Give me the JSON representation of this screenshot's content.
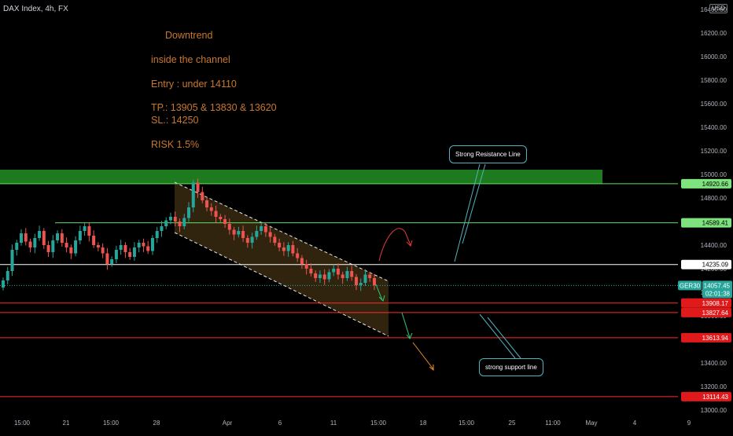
{
  "header": {
    "symbol": "DAX Index, 4h, FX",
    "currency": "USD"
  },
  "notes": {
    "line1": "Downtrend",
    "line2": "inside the channel",
    "line3": "Entry : under 14110",
    "line4": "TP.: 13905 & 13830 & 13620",
    "line5": "SL.: 14250",
    "line6": "RISK 1.5%"
  },
  "callouts": {
    "resistance": "Strong Resistance Line",
    "support": "strong support line"
  },
  "colors": {
    "background": "#000000",
    "up_candle": "#26a69a",
    "down_candle": "#ef5350",
    "resistance_zone": "#1e7a1e",
    "support_lines": "#ff2a2a",
    "channel_fill": "#3a2a10",
    "note_text": "#c8782e",
    "callout_border": "#4fb3bf"
  },
  "chart_data": {
    "type": "candlestick",
    "symbol": "DAX Index",
    "timeframe": "4h",
    "y_axis": {
      "ticks": [
        13000,
        13200,
        13400,
        13600,
        13800,
        14000,
        14200,
        14400,
        14600,
        14800,
        15000,
        15200,
        15400,
        15600,
        15800,
        16000,
        16200,
        16400
      ],
      "tick_labels": [
        "13000.00",
        "13200.00",
        "13400.00",
        "13600.00",
        "13800.00",
        "14000.00",
        "14200.00",
        "14400.00",
        "14600.00",
        "14800.00",
        "15000.00",
        "15200.00",
        "15400.00",
        "15600.00",
        "15800.00",
        "16000.00",
        "16200.00",
        "16400.00"
      ],
      "range": [
        12980,
        16480
      ]
    },
    "x_axis": {
      "tick_labels": [
        "15:00",
        "21",
        "15:00",
        "28",
        "Apr",
        "6",
        "11",
        "15:00",
        "18",
        "15:00",
        "25",
        "11:00",
        "May",
        "4",
        "9"
      ]
    },
    "price_levels": [
      {
        "label": "14920.66",
        "value": 14920.66,
        "role": "resistance",
        "color": "#5ee35e"
      },
      {
        "label": "14589.41",
        "value": 14589.41,
        "role": "level",
        "color": "#5ee35e"
      },
      {
        "label": "14235.09",
        "value": 14235.09,
        "role": "stop loss",
        "color": "#ffffff"
      },
      {
        "label": "13908.17",
        "value": 13908.17,
        "role": "take profit",
        "color": "#ff2a2a"
      },
      {
        "label": "13827.64",
        "value": 13827.64,
        "role": "take profit",
        "color": "#ff2a2a"
      },
      {
        "label": "13613.94",
        "value": 13613.94,
        "role": "take profit",
        "color": "#ff2a2a"
      },
      {
        "label": "13114.43",
        "value": 13114.43,
        "role": "support",
        "color": "#ff2a2a"
      }
    ],
    "current_price": {
      "symbol": "GER30",
      "price": "14057.45",
      "countdown": "02:01:38"
    },
    "resistance_zone": {
      "from": 14920,
      "to": 15040
    },
    "closes": [
      14100,
      14180,
      14360,
      14420,
      14500,
      14430,
      14380,
      14460,
      14520,
      14400,
      14340,
      14440,
      14500,
      14420,
      14380,
      14330,
      14440,
      14520,
      14560,
      14480,
      14400,
      14380,
      14330,
      14240,
      14280,
      14360,
      14400,
      14340,
      14300,
      14380,
      14420,
      14390,
      14350,
      14460,
      14520,
      14560,
      14610,
      14640,
      14600,
      14560,
      14630,
      14720,
      14930,
      14850,
      14780,
      14720,
      14690,
      14640,
      14620,
      14580,
      14530,
      14490,
      14520,
      14460,
      14420,
      14470,
      14520,
      14560,
      14510,
      14470,
      14420,
      14380,
      14350,
      14400,
      14330,
      14290,
      14240,
      14200,
      14160,
      14120,
      14150,
      14110,
      14170,
      14200,
      14150,
      14120,
      14180,
      14130,
      14060,
      14080,
      14150,
      14120,
      14060
    ]
  }
}
